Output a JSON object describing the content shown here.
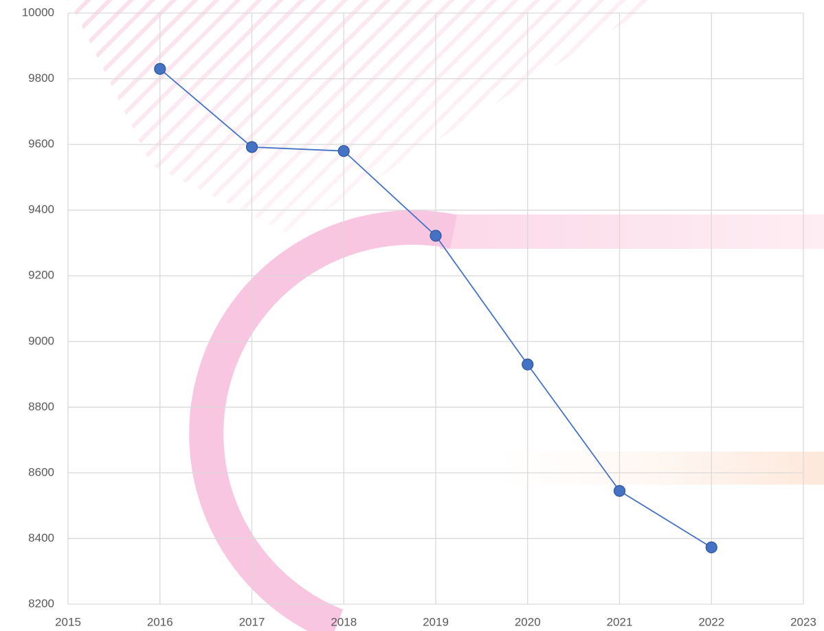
{
  "chart_data": {
    "type": "line",
    "x": [
      2016,
      2017,
      2018,
      2019,
      2020,
      2021,
      2022
    ],
    "series": [
      {
        "color": "#4472c4",
        "values": [
          9830,
          9592,
          9580,
          9322,
          8930,
          8545,
          8373
        ]
      }
    ],
    "xlim": [
      2015,
      2023
    ],
    "xticks": [
      2015,
      2016,
      2017,
      2018,
      2019,
      2020,
      2021,
      2022,
      2023
    ],
    "ylim": [
      8200,
      10000
    ],
    "yticks": [
      8200,
      8400,
      8600,
      8800,
      9000,
      9200,
      9400,
      9600,
      9800,
      10000
    ],
    "grid": true
  }
}
